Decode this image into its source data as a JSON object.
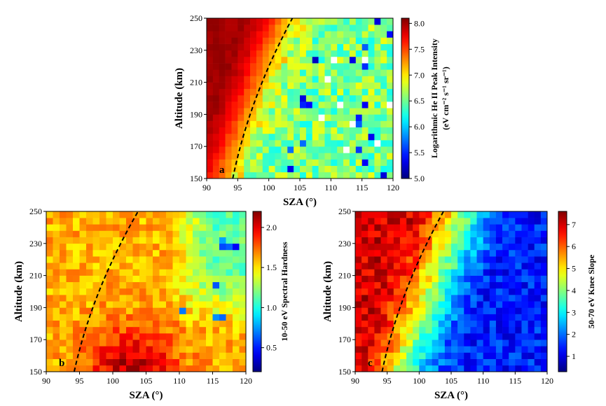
{
  "figure": {
    "colormap": "jet",
    "chart_data": [
      {
        "type": "heatmap",
        "panel_label": "a",
        "xlabel": "SZA (°)",
        "ylabel": "Altitude (km)",
        "xlim": [
          90,
          120
        ],
        "ylim": [
          150,
          250
        ],
        "x_ticks": [
          "90",
          "95",
          "100",
          "105",
          "110",
          "115",
          "120"
        ],
        "y_ticks": [
          "150",
          "170",
          "190",
          "210",
          "230",
          "250"
        ],
        "colorbar": {
          "label_line1": "Logarithmic He II Peak Intensity",
          "label_line2": "(eV cm⁻² s⁻¹ sr⁻¹)",
          "range": [
            5.0,
            8.1
          ],
          "ticks": [
            "5.0",
            "5.5",
            "6.0",
            "6.5",
            "7.0",
            "7.5",
            "8.0"
          ]
        },
        "terminator_line": {
          "style": "dashed",
          "x_at_150km": 94.2,
          "x_at_250km": 103.8
        },
        "field_description": "high (~8) at SZA 90-97 decreasing sharply across the dashed terminator to ~6.2-6.8 at SZA 105-120, with scattered low (~5.2-5.8) and missing bins at high SZA"
      },
      {
        "type": "heatmap",
        "panel_label": "b",
        "xlabel": "SZA (°)",
        "ylabel": "Altitude (km)",
        "xlim": [
          90,
          120
        ],
        "ylim": [
          150,
          250
        ],
        "x_ticks": [
          "90",
          "95",
          "100",
          "105",
          "110",
          "115",
          "120"
        ],
        "y_ticks": [
          "150",
          "170",
          "190",
          "210",
          "230",
          "250"
        ],
        "colorbar": {
          "label_line1": "10-50 eV Spectral Hardness",
          "label_line2": "",
          "range": [
            0.2,
            2.2
          ],
          "ticks": [
            "0.5",
            "1.0",
            "1.5",
            "2.0"
          ]
        },
        "terminator_line": {
          "style": "dashed",
          "x_at_150km": 94.2,
          "x_at_250km": 103.8
        },
        "field_description": "~1.55-1.65 across most of the domain, rising to ~1.9-2.15 near 150-175 km at SZA 97-112, falling to ~1.0-1.3 with scattered ~0.4-0.8 bins at SZA 110-120 above 190 km"
      },
      {
        "type": "heatmap",
        "panel_label": "c",
        "xlabel": "SZA (°)",
        "ylabel": "Altitude (km)",
        "xlim": [
          90,
          120
        ],
        "ylim": [
          150,
          250
        ],
        "x_ticks": [
          "90",
          "95",
          "100",
          "105",
          "110",
          "115",
          "120"
        ],
        "y_ticks": [
          "150",
          "170",
          "190",
          "210",
          "230",
          "250"
        ],
        "colorbar": {
          "label_line1": "50-70 eV Knee Slope",
          "label_line2": "",
          "range": [
            0.3,
            7.6
          ],
          "ticks": [
            "1",
            "2",
            "3",
            "4",
            "5",
            "6",
            "7"
          ]
        },
        "terminator_line": {
          "style": "dashed",
          "x_at_150km": 94.2,
          "x_at_250km": 103.8
        },
        "field_description": "~6.5-7.5 at SZA 90-97, decreasing across the terminator through ~4-5 at SZA 100-105 to ~1-2 at SZA 107-120"
      }
    ]
  }
}
